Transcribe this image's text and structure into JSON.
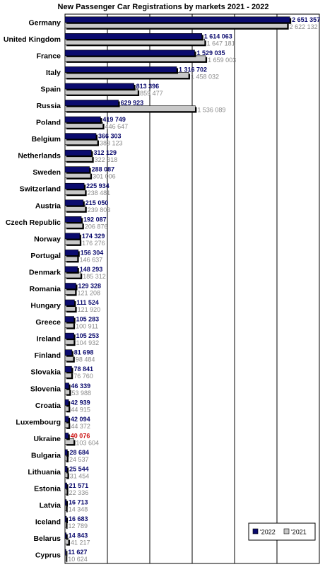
{
  "colors": {
    "bar_2022": "#0b0b6e",
    "bar_2021": "#c8c8c8",
    "shadow": "#000000",
    "label_2022": "#0b0b6e",
    "label_2021": "#8a8a8a",
    "highlight": "#cc1111",
    "grid": "#000000"
  },
  "chart_data": {
    "type": "bar",
    "orientation": "horizontal",
    "title": "New Passenger Car Registrations by markets 2021 - 2022",
    "categories": [
      "Germany",
      "United Kingdom",
      "France",
      "Italy",
      "Spain",
      "Russia",
      "Poland",
      "Belgium",
      "Netherlands",
      "Sweden",
      "Switzerland",
      "Austria",
      "Czech Republic",
      "Norway",
      "Portugal",
      "Denmark",
      "Romania",
      "Hungary",
      "Greece",
      "Ireland",
      "Finland",
      "Slovakia",
      "Slovenia",
      "Croatia",
      "Luxembourg",
      "Ukraine",
      "Bulgaria",
      "Lithuania",
      "Estonia",
      "Latvia",
      "Iceland",
      "Belarus",
      "Cyprus"
    ],
    "series": [
      {
        "name": "'2022",
        "values": [
          2651357,
          1614063,
          1529035,
          1316702,
          813396,
          629923,
          419749,
          366303,
          312129,
          288087,
          225934,
          215050,
          192087,
          174329,
          156304,
          148293,
          129328,
          111524,
          105283,
          105253,
          81698,
          78841,
          46339,
          42939,
          42094,
          40076,
          28684,
          25544,
          21571,
          16713,
          16683,
          14843,
          11627
        ],
        "labels": [
          "2 651 357",
          "1 614 063",
          "1 529 035",
          "1 316 702",
          "813 396",
          "629 923",
          "419 749",
          "366 303",
          "312 129",
          "288 087",
          "225 934",
          "215 050",
          "192 087",
          "174 329",
          "156 304",
          "148 293",
          "129 328",
          "111 524",
          "105 283",
          "105 253",
          "81 698",
          "78 841",
          "46 339",
          "42 939",
          "42 094",
          "40 076",
          "28 684",
          "25 544",
          "21 571",
          "16 713",
          "16 683",
          "14 843",
          "11 627"
        ]
      },
      {
        "name": "'2021",
        "values": [
          2622132,
          1647181,
          1659003,
          1458032,
          859477,
          1536089,
          446647,
          383123,
          322318,
          301006,
          238481,
          239803,
          206876,
          176276,
          146637,
          185312,
          121208,
          121920,
          100911,
          104932,
          98484,
          76760,
          53988,
          44915,
          44372,
          103604,
          24537,
          31454,
          22336,
          14348,
          12789,
          41217,
          10624
        ],
        "labels": [
          "2 622 132",
          "1 647 181",
          "1 659 003",
          "1 458 032",
          "859 477",
          "1 536 089",
          "446 647",
          "383 123",
          "322 318",
          "301 006",
          "238 481",
          "239 803",
          "206 876",
          "176 276",
          "146 637",
          "185 312",
          "121 208",
          "121 920",
          "100 911",
          "104 932",
          "98 484",
          "76 760",
          "53 988",
          "44 915",
          "44 372",
          "103 604",
          "24 537",
          "31 454",
          "22 336",
          "14 348",
          "12 789",
          "41 217",
          "10 624"
        ]
      }
    ],
    "highlight_category": "Ukraine",
    "xlim": [
      0,
      3000000
    ],
    "grid": true,
    "x_ticks_visible": false,
    "legend_position": "bottom-right",
    "shadowed_bars": true
  }
}
